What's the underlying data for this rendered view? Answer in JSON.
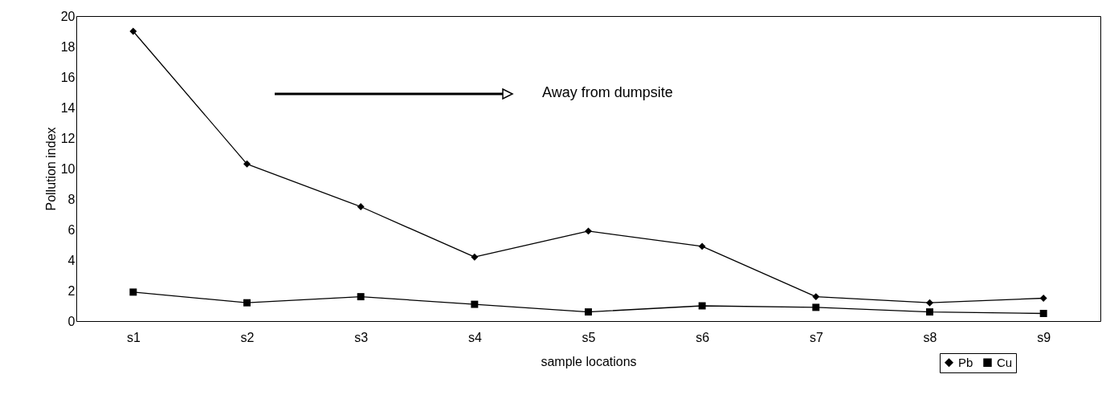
{
  "chart_data": {
    "type": "line",
    "xlabel": "sample locations",
    "ylabel": "Pollution index",
    "categories": [
      "s1",
      "s2",
      "s3",
      "s4",
      "s5",
      "s6",
      "s7",
      "s8",
      "s9"
    ],
    "series": [
      {
        "name": "Pb",
        "color": "#000000",
        "marker": "diamond",
        "values": [
          19,
          10.3,
          7.5,
          4.2,
          5.9,
          4.9,
          1.6,
          1.2,
          1.5
        ]
      },
      {
        "name": "Cu",
        "color": "#000000",
        "marker": "square",
        "values": [
          1.9,
          1.2,
          1.6,
          1.1,
          0.6,
          1.0,
          0.9,
          0.6,
          0.5
        ]
      }
    ],
    "ylim": [
      0,
      20
    ],
    "yticks": [
      0,
      2,
      4,
      6,
      8,
      10,
      12,
      14,
      16,
      18,
      20
    ],
    "annotations": [
      "Away from dumpsite"
    ],
    "grid": false,
    "legend": "bottom right",
    "line_style": "solid"
  }
}
